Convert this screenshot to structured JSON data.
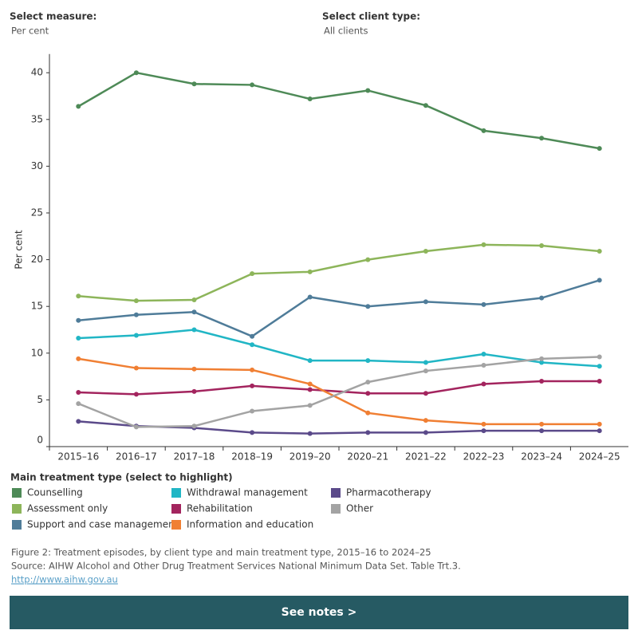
{
  "controls": {
    "measure_label": "Select measure:",
    "measure_value": "Per cent",
    "client_label": "Select client type:",
    "client_value": "All clients"
  },
  "chart_data": {
    "type": "line",
    "y_label": "Per cent",
    "legend_title": "Main treatment type (select to highlight)",
    "categories": [
      "2015–16",
      "2016–17",
      "2017–18",
      "2018–19",
      "2019–20",
      "2020–21",
      "2021–22",
      "2022–23",
      "2023–24",
      "2024–25"
    ],
    "ylim": [
      0,
      42
    ],
    "yticks": [
      0,
      5,
      10,
      15,
      20,
      25,
      30,
      35,
      40
    ],
    "grid": false,
    "series": [
      {
        "name": "Counselling",
        "color": "#4e8a57",
        "values": [
          36.4,
          40.0,
          38.8,
          38.7,
          37.2,
          38.1,
          36.5,
          33.8,
          33.0,
          31.9
        ]
      },
      {
        "name": "Assessment only",
        "color": "#8db55a",
        "values": [
          16.1,
          15.6,
          15.7,
          18.5,
          18.7,
          20.0,
          20.9,
          21.6,
          21.5,
          20.9
        ]
      },
      {
        "name": "Support and case management",
        "color": "#4f7c99",
        "values": [
          13.5,
          14.1,
          14.4,
          11.8,
          16.0,
          15.0,
          15.5,
          15.2,
          15.9,
          17.8
        ]
      },
      {
        "name": "Withdrawal management",
        "color": "#21b6c5",
        "values": [
          11.6,
          11.9,
          12.5,
          10.9,
          9.2,
          9.2,
          9.0,
          9.9,
          9.0,
          8.6
        ]
      },
      {
        "name": "Rehabilitation",
        "color": "#a3245e",
        "values": [
          5.8,
          5.6,
          5.9,
          6.5,
          6.1,
          5.7,
          5.7,
          6.7,
          7.0,
          7.0
        ]
      },
      {
        "name": "Information and education",
        "color": "#f07f33",
        "values": [
          9.4,
          8.4,
          8.3,
          8.2,
          6.7,
          3.6,
          2.8,
          2.4,
          2.4,
          2.4
        ]
      },
      {
        "name": "Pharmacotherapy",
        "color": "#5b4a8a",
        "values": [
          2.7,
          2.2,
          2.0,
          1.5,
          1.4,
          1.5,
          1.5,
          1.7,
          1.7,
          1.7
        ]
      },
      {
        "name": "Other",
        "color": "#a3a3a3",
        "values": [
          4.6,
          2.1,
          2.2,
          3.8,
          4.4,
          6.9,
          8.1,
          8.7,
          9.4,
          9.6
        ]
      }
    ]
  },
  "footer": {
    "caption": "Figure 2: Treatment episodes, by client type and main treatment type, 2015–16 to 2024–25",
    "source": "Source: AIHW Alcohol and Other Drug Treatment Services National Minimum Data Set. Table Trt.3.",
    "link": "http://www.aihw.gov.au"
  },
  "button": "See notes >"
}
